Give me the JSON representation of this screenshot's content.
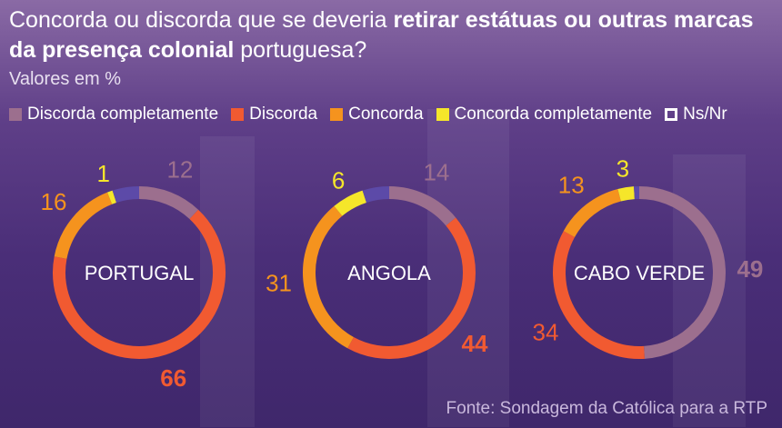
{
  "title": {
    "part1": "Concorda ou discorda que se deveria ",
    "bold": "retirar estátuas ou outras marcas da presença colonial",
    "part2": " portuguesa?"
  },
  "subtitle": "Valores em %",
  "source": "Fonte: Sondagem da Católica para a RTP",
  "colors": {
    "Discorda completamente": "#9c6f8e",
    "Discorda": "#f15a31",
    "Concorda": "#f5931e",
    "Concorda completamente": "#f5e62a",
    "Ns/Nr": "#5c4aa8"
  },
  "chart_data": {
    "type": "pie",
    "series_order": [
      "Discorda completamente",
      "Discorda",
      "Concorda",
      "Concorda completamente",
      "Ns/Nr"
    ],
    "legend": [
      "Discorda completamente",
      "Discorda",
      "Concorda",
      "Concorda completamente",
      "Ns/Nr"
    ],
    "legend_position": "top",
    "charts": [
      {
        "name": "PORTUGAL",
        "values": [
          12,
          66,
          16,
          1,
          5
        ],
        "labels": [
          "12",
          "66",
          "16",
          "1",
          ""
        ]
      },
      {
        "name": "ANGOLA",
        "values": [
          14,
          44,
          31,
          6,
          5
        ],
        "labels": [
          "14",
          "44",
          "31",
          "6",
          ""
        ]
      },
      {
        "name": "CABO VERDE",
        "values": [
          49,
          34,
          13,
          3,
          1
        ],
        "labels": [
          "49",
          "34",
          "13",
          "3",
          ""
        ]
      }
    ]
  }
}
